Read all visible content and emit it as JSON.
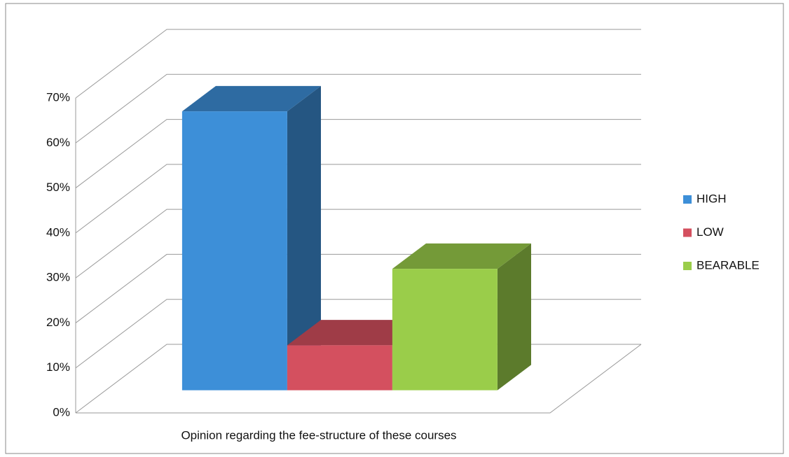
{
  "chart_data": {
    "type": "bar3d",
    "categories": [
      "Opinion regarding the fee-structure of these courses"
    ],
    "series": [
      {
        "name": "HIGH",
        "color": "#3d8fd8",
        "values": [
          62
        ]
      },
      {
        "name": "LOW",
        "color": "#d4505f",
        "values": [
          10
        ]
      },
      {
        "name": "BEARABLE",
        "color": "#9acd4a",
        "values": [
          27
        ]
      }
    ],
    "ylim": [
      0,
      70
    ],
    "yticks": [
      {
        "value": 0,
        "label": "0%"
      },
      {
        "value": 10,
        "label": "10%"
      },
      {
        "value": 20,
        "label": "20%"
      },
      {
        "value": 30,
        "label": "30%"
      },
      {
        "value": 40,
        "label": "40%"
      },
      {
        "value": 50,
        "label": "50%"
      },
      {
        "value": 60,
        "label": "60%"
      },
      {
        "value": 70,
        "label": "70%"
      }
    ],
    "grid": true,
    "legend": "right"
  }
}
